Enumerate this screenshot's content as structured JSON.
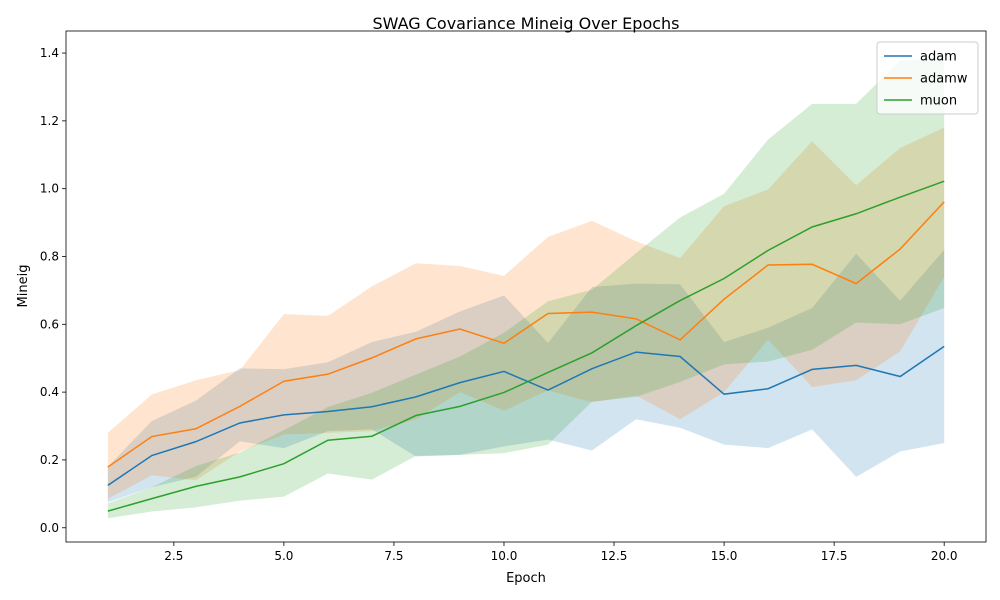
{
  "chart_data": {
    "type": "line",
    "title": "SWAG Covariance Mineig Over Epochs",
    "xlabel": "Epoch",
    "ylabel": "Mineig",
    "xlim": [
      0.05,
      20.95
    ],
    "ylim": [
      -0.042,
      1.465
    ],
    "xticks": [
      2.5,
      5.0,
      7.5,
      10.0,
      12.5,
      15.0,
      17.5,
      20.0
    ],
    "xtick_labels": [
      "2.5",
      "5.0",
      "7.5",
      "10.0",
      "12.5",
      "15.0",
      "17.5",
      "20.0"
    ],
    "yticks": [
      0.0,
      0.2,
      0.4,
      0.6,
      0.8,
      1.0,
      1.2,
      1.4
    ],
    "ytick_labels": [
      "0.0",
      "0.2",
      "0.4",
      "0.6",
      "0.8",
      "1.0",
      "1.2",
      "1.4"
    ],
    "grid": false,
    "legend_position": "top-right",
    "x": [
      1,
      2,
      3,
      4,
      5,
      6,
      7,
      8,
      9,
      10,
      11,
      12,
      13,
      14,
      15,
      16,
      17,
      18,
      19,
      20
    ],
    "series": [
      {
        "name": "adam",
        "color": "#1f77b4",
        "values": [
          0.125,
          0.213,
          0.254,
          0.309,
          0.333,
          0.343,
          0.357,
          0.386,
          0.428,
          0.461,
          0.406,
          0.469,
          0.518,
          0.505,
          0.394,
          0.41,
          0.467,
          0.479,
          0.446,
          0.535
        ],
        "lower": [
          0.075,
          0.12,
          0.15,
          0.255,
          0.235,
          0.285,
          0.29,
          0.21,
          0.215,
          0.24,
          0.26,
          0.228,
          0.32,
          0.295,
          0.245,
          0.235,
          0.29,
          0.15,
          0.225,
          0.25
        ],
        "upper": [
          0.18,
          0.315,
          0.375,
          0.47,
          0.468,
          0.488,
          0.548,
          0.578,
          0.638,
          0.685,
          0.545,
          0.71,
          0.72,
          0.718,
          0.548,
          0.59,
          0.648,
          0.808,
          0.67,
          0.82
        ]
      },
      {
        "name": "adamw",
        "color": "#ff7f0e",
        "values": [
          0.179,
          0.269,
          0.292,
          0.358,
          0.432,
          0.453,
          0.501,
          0.557,
          0.586,
          0.544,
          0.632,
          0.636,
          0.616,
          0.554,
          0.674,
          0.775,
          0.777,
          0.72,
          0.822,
          0.961
        ],
        "lower": [
          0.085,
          0.155,
          0.14,
          0.225,
          0.275,
          0.28,
          0.285,
          0.32,
          0.4,
          0.345,
          0.405,
          0.37,
          0.39,
          0.32,
          0.4,
          0.555,
          0.415,
          0.435,
          0.52,
          0.74
        ],
        "upper": [
          0.28,
          0.393,
          0.435,
          0.465,
          0.63,
          0.625,
          0.712,
          0.78,
          0.772,
          0.743,
          0.858,
          0.905,
          0.845,
          0.795,
          0.948,
          0.998,
          1.14,
          1.01,
          1.12,
          1.18
        ]
      },
      {
        "name": "muon",
        "color": "#2ca02c",
        "values": [
          0.049,
          0.086,
          0.122,
          0.15,
          0.189,
          0.258,
          0.27,
          0.331,
          0.358,
          0.399,
          0.458,
          0.516,
          0.596,
          0.67,
          0.735,
          0.818,
          0.887,
          0.926,
          0.975,
          1.022
        ],
        "lower": [
          0.028,
          0.048,
          0.06,
          0.08,
          0.092,
          0.16,
          0.142,
          0.212,
          0.215,
          0.22,
          0.245,
          0.372,
          0.386,
          0.43,
          0.482,
          0.49,
          0.525,
          0.605,
          0.6,
          0.648
        ],
        "upper": [
          0.072,
          0.12,
          0.182,
          0.222,
          0.288,
          0.356,
          0.398,
          0.452,
          0.505,
          0.575,
          0.668,
          0.702,
          0.81,
          0.915,
          0.985,
          1.145,
          1.25,
          1.25,
          1.378,
          1.385
        ]
      }
    ]
  }
}
